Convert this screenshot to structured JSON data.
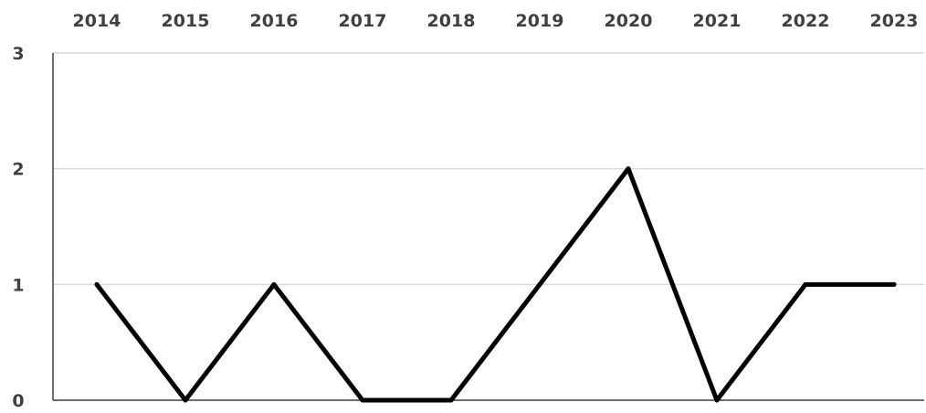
{
  "chart_data": {
    "type": "line",
    "x": [
      "2014",
      "2015",
      "2016",
      "2017",
      "2018",
      "2019",
      "2020",
      "2021",
      "2022",
      "2023"
    ],
    "series": [
      {
        "values": [
          1,
          0,
          1,
          0,
          0,
          1,
          2,
          0,
          1,
          1
        ],
        "color": "#000000"
      }
    ],
    "yticks": [
      "0",
      "1",
      "2",
      "3"
    ],
    "ylim": [
      0,
      3
    ],
    "xaxis_position": "top",
    "grid": true,
    "gridline_color": "#d9d9d9",
    "title": "",
    "xlabel": "",
    "ylabel": ""
  }
}
